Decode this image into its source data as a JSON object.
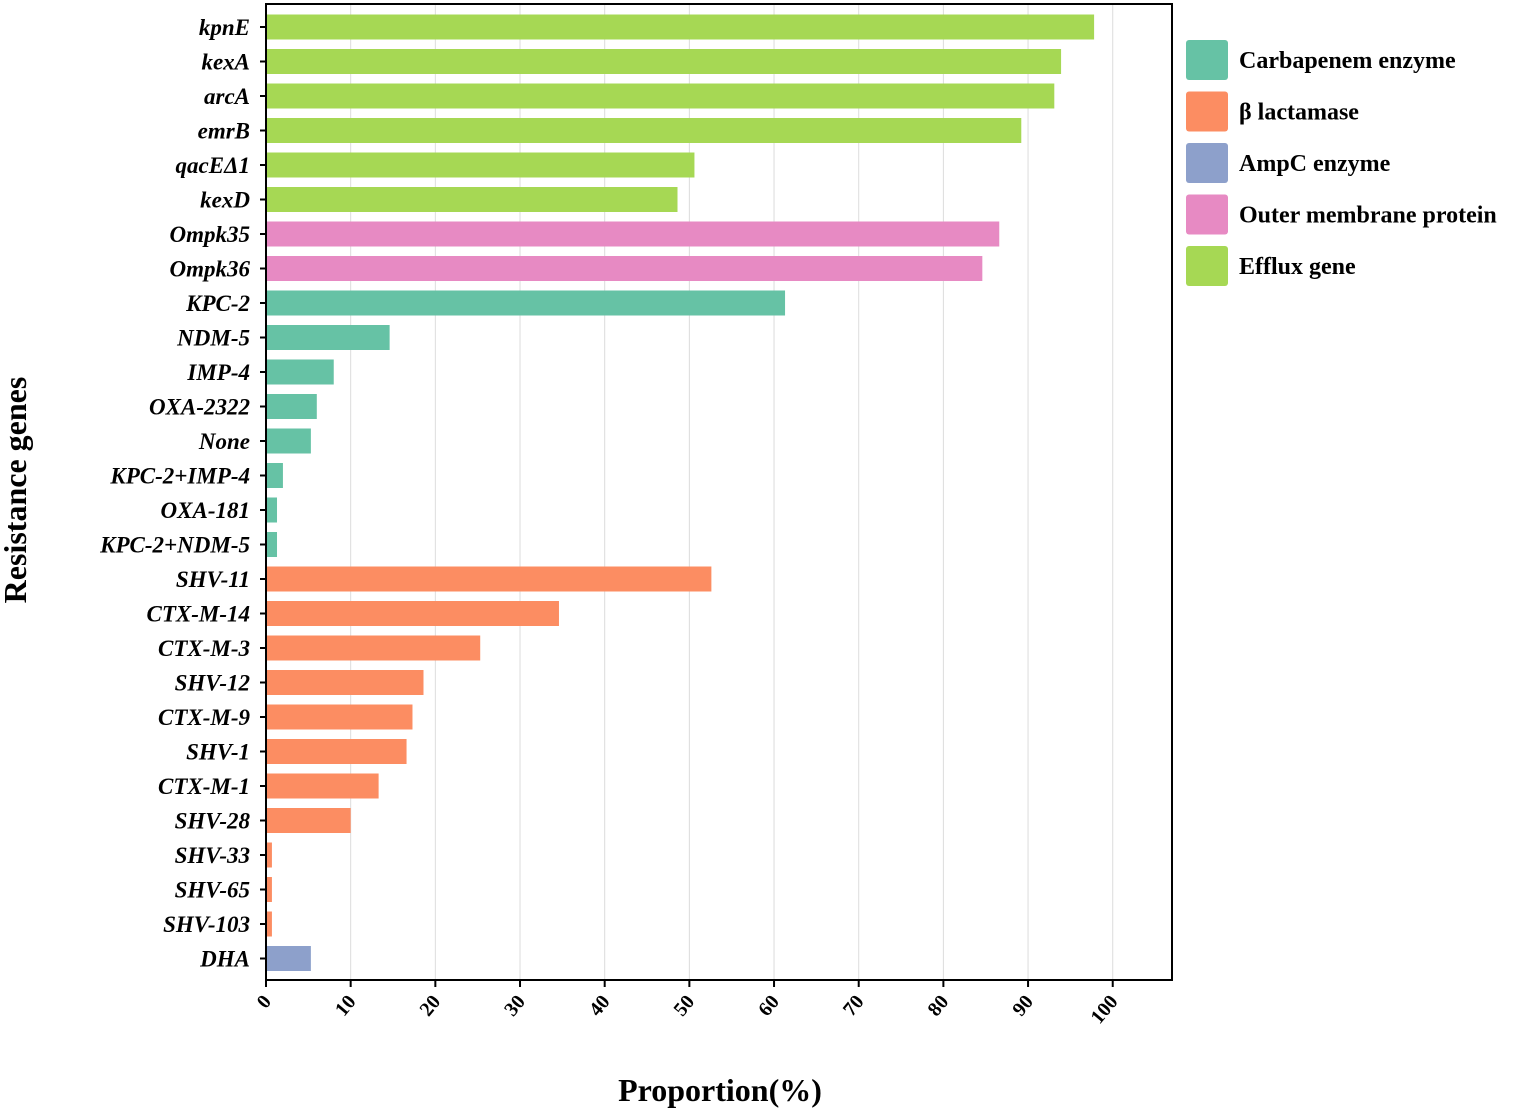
{
  "chart_data": {
    "type": "bar",
    "orientation": "horizontal",
    "title": "",
    "xlabel": "Proportion(%)",
    "ylabel": "Resistance genes",
    "xlim": [
      0,
      107
    ],
    "xticks": [
      "0",
      "10",
      "20",
      "30",
      "40",
      "50",
      "60",
      "70",
      "80",
      "90",
      "100"
    ],
    "grid": true,
    "legend_position": "right",
    "groups": [
      {
        "name": "Carbapenem enzyme",
        "color": "#66c2a5"
      },
      {
        "name": "β lactamase",
        "color": "#fc8d62"
      },
      {
        "name": "AmpC enzyme",
        "color": "#8da0cb"
      },
      {
        "name": "Outer membrane protein",
        "color": "#e78ac3"
      },
      {
        "name": "Efflux gene",
        "color": "#a6d854"
      }
    ],
    "bars": [
      {
        "label": "kpnE",
        "value": 97.8,
        "group": "Efflux gene"
      },
      {
        "label": "kexA",
        "value": 93.9,
        "group": "Efflux gene"
      },
      {
        "label": "arcA",
        "value": 93.1,
        "group": "Efflux gene"
      },
      {
        "label": "emrB",
        "value": 89.2,
        "group": "Efflux gene"
      },
      {
        "label": "qacEΔ1",
        "value": 50.6,
        "group": "Efflux gene"
      },
      {
        "label": "kexD",
        "value": 48.6,
        "group": "Efflux gene"
      },
      {
        "label": "Ompk35",
        "value": 86.6,
        "group": "Outer membrane protein"
      },
      {
        "label": "Ompk36",
        "value": 84.6,
        "group": "Outer membrane protein"
      },
      {
        "label": "KPC-2",
        "value": 61.3,
        "group": "Carbapenem enzyme"
      },
      {
        "label": "NDM-5",
        "value": 14.6,
        "group": "Carbapenem enzyme"
      },
      {
        "label": "IMP-4",
        "value": 8.0,
        "group": "Carbapenem enzyme"
      },
      {
        "label": "OXA-2322",
        "value": 6.0,
        "group": "Carbapenem enzyme"
      },
      {
        "label": "None",
        "value": 5.3,
        "group": "Carbapenem enzyme"
      },
      {
        "label": "KPC-2+IMP-4",
        "value": 2.0,
        "group": "Carbapenem enzyme"
      },
      {
        "label": "OXA-181",
        "value": 1.3,
        "group": "Carbapenem enzyme"
      },
      {
        "label": "KPC-2+NDM-5",
        "value": 1.3,
        "group": "Carbapenem enzyme"
      },
      {
        "label": "SHV-11",
        "value": 52.6,
        "group": "β lactamase"
      },
      {
        "label": "CTX-M-14",
        "value": 34.6,
        "group": "β lactamase"
      },
      {
        "label": "CTX-M-3",
        "value": 25.3,
        "group": "β lactamase"
      },
      {
        "label": "SHV-12",
        "value": 18.6,
        "group": "β lactamase"
      },
      {
        "label": "CTX-M-9",
        "value": 17.3,
        "group": "β lactamase"
      },
      {
        "label": "SHV-1",
        "value": 16.6,
        "group": "β lactamase"
      },
      {
        "label": "CTX-M-1",
        "value": 13.3,
        "group": "β lactamase"
      },
      {
        "label": "SHV-28",
        "value": 10.0,
        "group": "β lactamase"
      },
      {
        "label": "SHV-33",
        "value": 0.7,
        "group": "β lactamase"
      },
      {
        "label": "SHV-65",
        "value": 0.7,
        "group": "β lactamase"
      },
      {
        "label": "SHV-103",
        "value": 0.7,
        "group": "β lactamase"
      },
      {
        "label": "DHA",
        "value": 5.3,
        "group": "AmpC enzyme"
      }
    ]
  }
}
